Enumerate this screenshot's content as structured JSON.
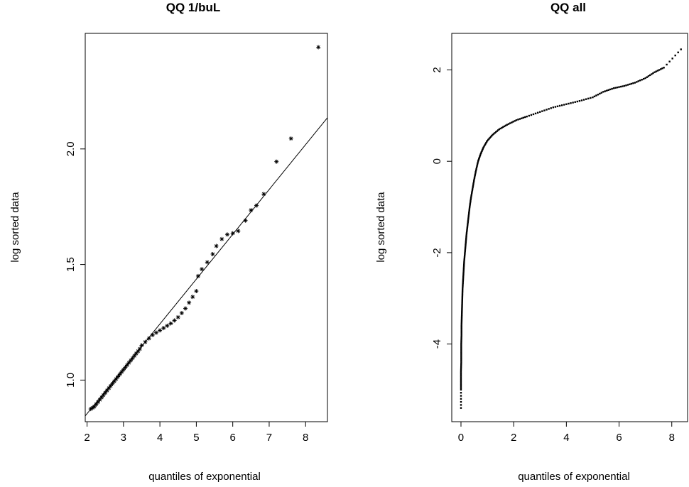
{
  "chart_data": [
    {
      "type": "scatter",
      "title": "QQ 1/buL",
      "xlabel": "quantiles of exponential",
      "ylabel": "log sorted data",
      "xlim": [
        1.95,
        8.6
      ],
      "ylim": [
        0.82,
        2.5
      ],
      "xticks": [
        2,
        3,
        4,
        5,
        6,
        7,
        8
      ],
      "yticks": [
        1.0,
        1.5,
        2.0
      ],
      "ytick_labels": [
        "1.0",
        "1.5",
        "2.0"
      ],
      "marker": "*",
      "fit_line": {
        "x": [
          1.95,
          8.6
        ],
        "y": [
          0.845,
          2.135
        ]
      },
      "points": [
        [
          2.1,
          0.875
        ],
        [
          2.15,
          0.88
        ],
        [
          2.2,
          0.885
        ],
        [
          2.25,
          0.895
        ],
        [
          2.3,
          0.905
        ],
        [
          2.35,
          0.915
        ],
        [
          2.4,
          0.925
        ],
        [
          2.45,
          0.935
        ],
        [
          2.5,
          0.945
        ],
        [
          2.55,
          0.955
        ],
        [
          2.6,
          0.965
        ],
        [
          2.65,
          0.975
        ],
        [
          2.7,
          0.985
        ],
        [
          2.75,
          0.995
        ],
        [
          2.8,
          1.005
        ],
        [
          2.85,
          1.015
        ],
        [
          2.9,
          1.025
        ],
        [
          2.95,
          1.035
        ],
        [
          3.0,
          1.045
        ],
        [
          3.05,
          1.055
        ],
        [
          3.1,
          1.065
        ],
        [
          3.15,
          1.075
        ],
        [
          3.2,
          1.085
        ],
        [
          3.25,
          1.095
        ],
        [
          3.3,
          1.105
        ],
        [
          3.35,
          1.115
        ],
        [
          3.4,
          1.125
        ],
        [
          3.45,
          1.135
        ],
        [
          3.5,
          1.15
        ],
        [
          3.6,
          1.165
        ],
        [
          3.7,
          1.18
        ],
        [
          3.8,
          1.195
        ],
        [
          3.9,
          1.205
        ],
        [
          4.0,
          1.215
        ],
        [
          4.1,
          1.225
        ],
        [
          4.2,
          1.235
        ],
        [
          4.3,
          1.245
        ],
        [
          4.4,
          1.258
        ],
        [
          4.5,
          1.272
        ],
        [
          4.6,
          1.29
        ],
        [
          4.7,
          1.31
        ],
        [
          4.8,
          1.335
        ],
        [
          4.9,
          1.36
        ],
        [
          5.0,
          1.385
        ],
        [
          5.05,
          1.45
        ],
        [
          5.15,
          1.48
        ],
        [
          5.3,
          1.51
        ],
        [
          5.45,
          1.545
        ],
        [
          5.55,
          1.58
        ],
        [
          5.7,
          1.61
        ],
        [
          5.85,
          1.63
        ],
        [
          6.0,
          1.635
        ],
        [
          6.15,
          1.645
        ],
        [
          6.35,
          1.69
        ],
        [
          6.5,
          1.735
        ],
        [
          6.65,
          1.755
        ],
        [
          6.85,
          1.805
        ],
        [
          7.2,
          1.945
        ],
        [
          7.6,
          2.045
        ],
        [
          8.35,
          2.44
        ]
      ]
    },
    {
      "type": "scatter",
      "title": "QQ all",
      "xlabel": "quantiles of exponential",
      "ylabel": "log sorted data",
      "xlim": [
        -0.35,
        8.6
      ],
      "ylim": [
        -5.7,
        2.8
      ],
      "xticks": [
        0,
        2,
        4,
        6,
        8
      ],
      "yticks": [
        -4,
        -2,
        0,
        2
      ],
      "ytick_labels": [
        "-4",
        "-2",
        "0",
        "2"
      ],
      "marker": "dot",
      "points": [
        [
          0.0,
          -5.4
        ],
        [
          0.0,
          -5.0
        ],
        [
          0.0,
          -4.8
        ],
        [
          0.0,
          -4.6
        ],
        [
          0.01,
          -4.4
        ],
        [
          0.01,
          -4.2
        ],
        [
          0.01,
          -4.0
        ],
        [
          0.02,
          -3.8
        ],
        [
          0.02,
          -3.6
        ],
        [
          0.03,
          -3.4
        ],
        [
          0.04,
          -3.2
        ],
        [
          0.05,
          -3.0
        ],
        [
          0.06,
          -2.8
        ],
        [
          0.08,
          -2.6
        ],
        [
          0.1,
          -2.4
        ],
        [
          0.12,
          -2.2
        ],
        [
          0.15,
          -2.0
        ],
        [
          0.18,
          -1.8
        ],
        [
          0.21,
          -1.6
        ],
        [
          0.25,
          -1.4
        ],
        [
          0.29,
          -1.2
        ],
        [
          0.33,
          -1.0
        ],
        [
          0.38,
          -0.8
        ],
        [
          0.44,
          -0.6
        ],
        [
          0.5,
          -0.4
        ],
        [
          0.57,
          -0.2
        ],
        [
          0.65,
          0.0
        ],
        [
          0.74,
          0.15
        ],
        [
          0.85,
          0.3
        ],
        [
          1.0,
          0.45
        ],
        [
          1.2,
          0.58
        ],
        [
          1.45,
          0.7
        ],
        [
          1.75,
          0.8
        ],
        [
          2.1,
          0.9
        ],
        [
          2.5,
          0.98
        ],
        [
          3.0,
          1.08
        ],
        [
          3.5,
          1.18
        ],
        [
          4.0,
          1.25
        ],
        [
          4.5,
          1.32
        ],
        [
          5.0,
          1.4
        ],
        [
          5.4,
          1.52
        ],
        [
          5.8,
          1.6
        ],
        [
          6.2,
          1.65
        ],
        [
          6.6,
          1.72
        ],
        [
          7.0,
          1.82
        ],
        [
          7.35,
          1.95
        ],
        [
          7.7,
          2.05
        ],
        [
          8.35,
          2.45
        ]
      ]
    }
  ]
}
